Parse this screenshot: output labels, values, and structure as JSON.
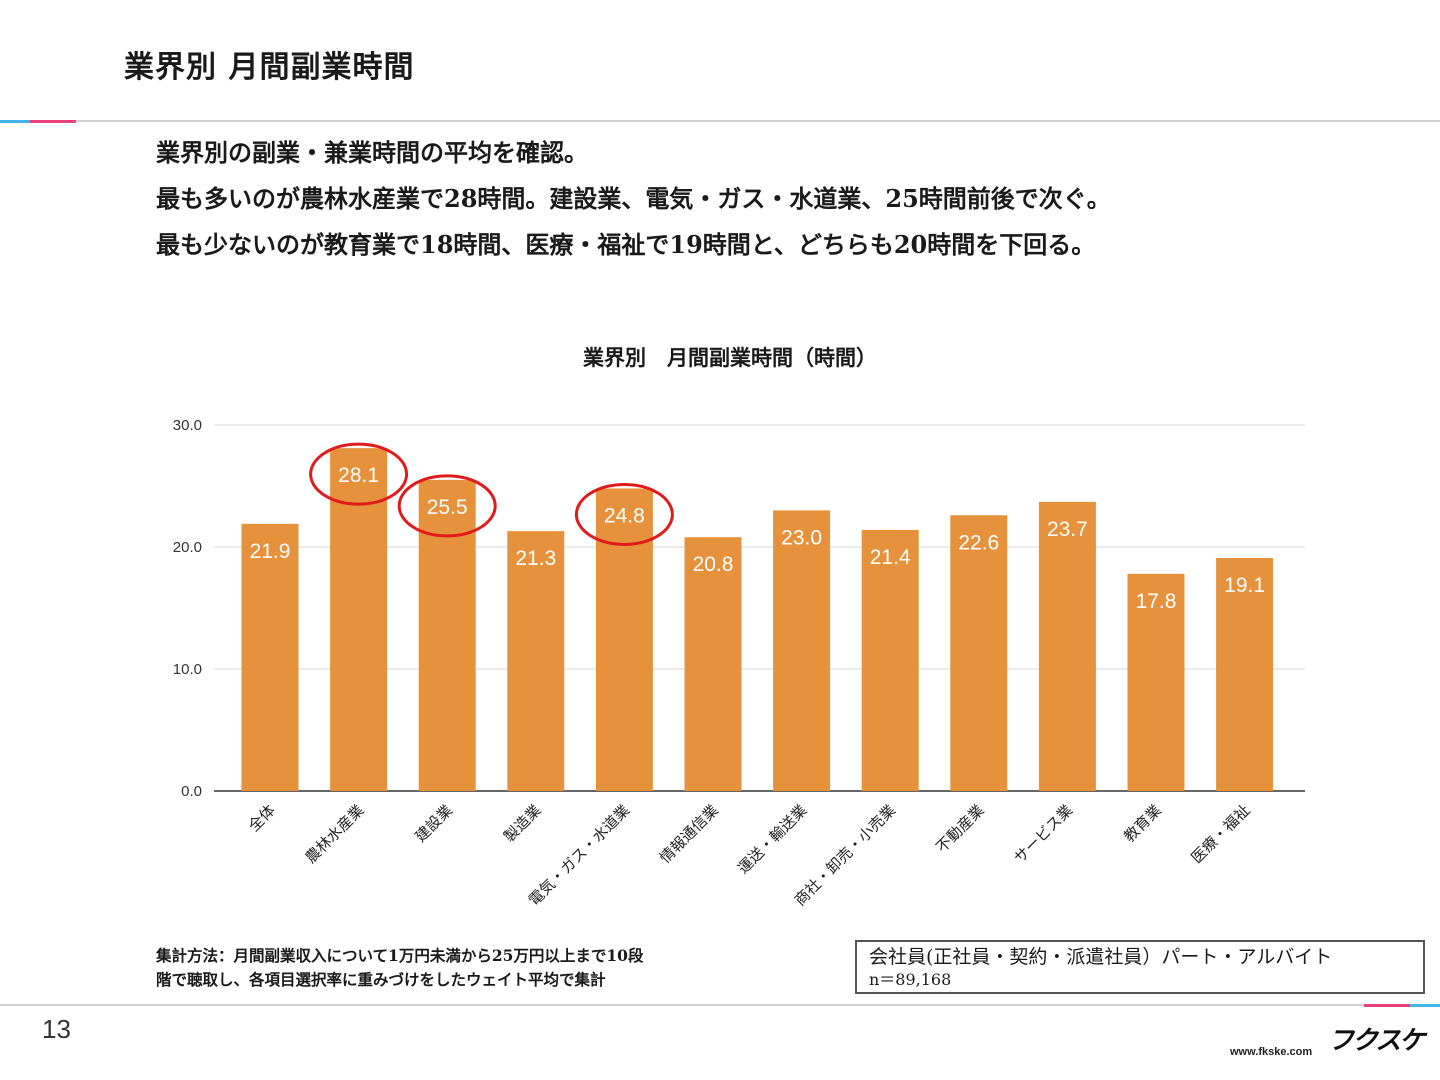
{
  "slide": {
    "title": "業界別 月間副業時間",
    "page_number": "13"
  },
  "summary": [
    "業界別の副業・兼業時間の平均を確認。",
    "最も多いのが農林水産業で28時間。建設業、電気・ガス・水道業、25時間前後で次ぐ。",
    "最も少ないのが教育業で18時間、医療・福祉で19時間と、どちらも20時間を下回る。"
  ],
  "note": {
    "line1": "集計方法：月間副業収入について1万円未満から25万円以上まで10段",
    "line2": "階で聴取し、各項目選択率に重みづけをしたウェイト平均で集計"
  },
  "legend": {
    "target": "会社員(正社員・契約・派遣社員）パート・アルバイト",
    "sample": "n＝89,168"
  },
  "brand": {
    "logo": "フクスケ",
    "url": "www.fkske.com"
  },
  "colors": {
    "bar": "#e6913b",
    "highlight_circle": "#e01b1b",
    "grid": "#d9d9d9",
    "axis": "#333333",
    "data_label": "#ffffff"
  },
  "chart_data": {
    "type": "bar",
    "title": "業界別　月間副業時間（時間）",
    "categories": [
      "全体",
      "農林水産業",
      "建設業",
      "製造業",
      "電気・ガス・水道業",
      "情報通信業",
      "運送・輸送業",
      "商社・卸売・小売業",
      "不動産業",
      "サービス業",
      "教育業",
      "医療・福祉"
    ],
    "values": [
      21.9,
      28.1,
      25.5,
      21.3,
      24.8,
      20.8,
      23.0,
      21.4,
      22.6,
      23.7,
      17.8,
      19.1
    ],
    "value_labels": [
      "21.9",
      "28.1",
      "25.5",
      "21.3",
      "24.8",
      "20.8",
      "23.0",
      "21.4",
      "22.6",
      "23.7",
      "17.8",
      "19.1"
    ],
    "ylim": [
      0,
      30
    ],
    "yticks": [
      "0.0",
      "10.0",
      "20.0",
      "30.0"
    ],
    "ytick_values": [
      0,
      10,
      20,
      30
    ],
    "highlighted": [
      "農林水産業",
      "建設業",
      "電気・ガス・水道業"
    ],
    "grid": true,
    "xlabel": "",
    "ylabel": ""
  }
}
